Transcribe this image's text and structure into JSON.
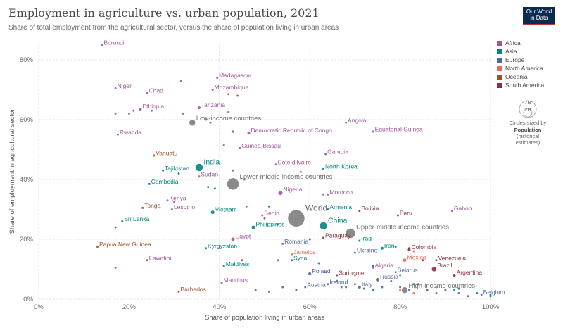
{
  "header": {
    "title": "Employment in agriculture vs. urban population, 2021",
    "subtitle": "Share of total employment from the agricultural sector, versus the share of population living in urban areas",
    "logo_line1": "Our World",
    "logo_line2": "in Data"
  },
  "colors": {
    "Africa": "#a2559c",
    "Asia": "#00847e",
    "Europe": "#4c6a9c",
    "North America": "#e56e5a",
    "Oceania": "#9a5129",
    "South America": "#883039",
    "Income": "#6d6d6d"
  },
  "size_legend": {
    "big": "7B",
    "small": "2B",
    "caption": "Circles sized by",
    "var": "Population",
    "var_note": "(historical",
    "var_note2": "estimates)"
  },
  "chart_data": {
    "type": "scatter",
    "xlabel": "Share of population living in urban areas",
    "ylabel": "Share of employment in agricultural sector",
    "xlim": [
      0,
      100
    ],
    "ylim": [
      0,
      80
    ],
    "xticks": [
      "0%",
      "20%",
      "40%",
      "60%",
      "80%",
      "100%"
    ],
    "yticks": [
      "0%",
      "20%",
      "40%",
      "60%",
      "80%"
    ],
    "legend": [
      "Africa",
      "Asia",
      "Europe",
      "North America",
      "Oceania",
      "South America"
    ],
    "points": [
      {
        "name": "Burundi",
        "region": "Africa",
        "x": 14,
        "y": 85,
        "r": 1.5
      },
      {
        "name": "Niger",
        "region": "Africa",
        "x": 17,
        "y": 70.5,
        "r": 1.5
      },
      {
        "name": "Chad",
        "region": "Africa",
        "x": 24,
        "y": 69,
        "r": 1.5
      },
      {
        "name": "Ethiopia",
        "region": "Africa",
        "x": 22.5,
        "y": 63.5,
        "r": 2
      },
      {
        "name": "Madagascar",
        "region": "Africa",
        "x": 39.5,
        "y": 74,
        "r": 1.5
      },
      {
        "name": "Mozambique",
        "region": "Africa",
        "x": 38.5,
        "y": 70,
        "r": 1.5
      },
      {
        "name": "Tanzania",
        "region": "Africa",
        "x": 35.5,
        "y": 64,
        "r": 2
      },
      {
        "name": "Rwanda",
        "region": "Africa",
        "x": 17.5,
        "y": 55,
        "r": 1.5
      },
      {
        "name": "Democratic Republic of Congo",
        "region": "Africa",
        "x": 46.5,
        "y": 55.5,
        "r": 2
      },
      {
        "name": "Angola",
        "region": "Africa",
        "x": 68,
        "y": 59,
        "r": 1.5
      },
      {
        "name": "Equatorial Guinea",
        "region": "Africa",
        "x": 74,
        "y": 56,
        "r": 1.5
      },
      {
        "name": "Guinea-Bissau",
        "region": "Africa",
        "x": 44.5,
        "y": 50.5,
        "r": 1.5
      },
      {
        "name": "Gambia",
        "region": "Africa",
        "x": 63.5,
        "y": 48.5,
        "r": 1.5
      },
      {
        "name": "Cote d'Ivoire",
        "region": "Africa",
        "x": 52.5,
        "y": 45,
        "r": 1.5
      },
      {
        "name": "Sudan",
        "region": "Africa",
        "x": 35.5,
        "y": 41,
        "r": 1.5
      },
      {
        "name": "Kenya",
        "region": "Africa",
        "x": 28.5,
        "y": 33,
        "r": 1.5
      },
      {
        "name": "Lesotho",
        "region": "Africa",
        "x": 29.5,
        "y": 30,
        "r": 1.5
      },
      {
        "name": "Nigeria",
        "region": "Africa",
        "x": 53.5,
        "y": 35.5,
        "r": 3
      },
      {
        "name": "Morocco",
        "region": "Africa",
        "x": 64,
        "y": 35,
        "r": 1.5
      },
      {
        "name": "Benin",
        "region": "Africa",
        "x": 49.5,
        "y": 28,
        "r": 1.5
      },
      {
        "name": "Egypt",
        "region": "Africa",
        "x": 43,
        "y": 20,
        "r": 2.5
      },
      {
        "name": "Eswatini",
        "region": "Africa",
        "x": 24,
        "y": 13,
        "r": 1.5
      },
      {
        "name": "Mauritius",
        "region": "Africa",
        "x": 40.5,
        "y": 5.5,
        "r": 1.5
      },
      {
        "name": "Algeria",
        "region": "Africa",
        "x": 74,
        "y": 10.5,
        "r": 1.5
      },
      {
        "name": "Gabon",
        "region": "Africa",
        "x": 91.5,
        "y": 29.5,
        "r": 1.5
      },
      {
        "name": "India",
        "region": "Asia",
        "x": 35.5,
        "y": 44,
        "r": 5.5
      },
      {
        "name": "Tajikistan",
        "region": "Asia",
        "x": 27.5,
        "y": 43,
        "r": 1.5
      },
      {
        "name": "Cambodia",
        "region": "Asia",
        "x": 24.5,
        "y": 38.5,
        "r": 1.5
      },
      {
        "name": "North Korea",
        "region": "Asia",
        "x": 63,
        "y": 43.5,
        "r": 1.5
      },
      {
        "name": "Vietnam",
        "region": "Asia",
        "x": 38.5,
        "y": 29,
        "r": 2.5
      },
      {
        "name": "Sri Lanka",
        "region": "Asia",
        "x": 18.5,
        "y": 26,
        "r": 1.5
      },
      {
        "name": "Armenia",
        "region": "Asia",
        "x": 64,
        "y": 30,
        "r": 1.5
      },
      {
        "name": "Philippines",
        "region": "Asia",
        "x": 47.5,
        "y": 24,
        "r": 2.5
      },
      {
        "name": "China",
        "region": "Asia",
        "x": 63,
        "y": 24.5,
        "r": 5.5
      },
      {
        "name": "Kyrgyzstan",
        "region": "Asia",
        "x": 37,
        "y": 17,
        "r": 1.5
      },
      {
        "name": "Iraq",
        "region": "Asia",
        "x": 71,
        "y": 19.5,
        "r": 1.5
      },
      {
        "name": "Iran",
        "region": "Asia",
        "x": 76,
        "y": 17,
        "r": 2
      },
      {
        "name": "Maldives",
        "region": "Asia",
        "x": 41,
        "y": 11,
        "r": 1.5
      },
      {
        "name": "Syria",
        "region": "Asia",
        "x": 56,
        "y": 13,
        "r": 1.5
      },
      {
        "name": "Romania",
        "region": "Europe",
        "x": 54,
        "y": 18.5,
        "r": 1.5
      },
      {
        "name": "Ukraine",
        "region": "Europe",
        "x": 70,
        "y": 15.5,
        "r": 1.5
      },
      {
        "name": "Poland",
        "region": "Europe",
        "x": 60,
        "y": 8.5,
        "r": 2
      },
      {
        "name": "Belarus",
        "region": "Europe",
        "x": 79,
        "y": 9,
        "r": 1.5
      },
      {
        "name": "Russia",
        "region": "Europe",
        "x": 75,
        "y": 6.5,
        "r": 2.5
      },
      {
        "name": "Austria",
        "region": "Europe",
        "x": 59,
        "y": 4,
        "r": 1.5
      },
      {
        "name": "Ireland",
        "region": "Europe",
        "x": 64,
        "y": 5,
        "r": 1.5
      },
      {
        "name": "Italy",
        "region": "Europe",
        "x": 71,
        "y": 4,
        "r": 2
      },
      {
        "name": "Belgium",
        "region": "Europe",
        "x": 98,
        "y": 1.5,
        "r": 1.5
      },
      {
        "name": "Jamaica",
        "region": "North America",
        "x": 56,
        "y": 15,
        "r": 1.5
      },
      {
        "name": "Mexico",
        "region": "North America",
        "x": 81,
        "y": 13,
        "r": 2.5
      },
      {
        "name": "Papua New Guinea",
        "region": "Oceania",
        "x": 13,
        "y": 17.5,
        "r": 1.5
      },
      {
        "name": "Vanuatu",
        "region": "Oceania",
        "x": 25.5,
        "y": 48,
        "r": 1.5
      },
      {
        "name": "Tonga",
        "region": "Oceania",
        "x": 23,
        "y": 30.5,
        "r": 1.5
      },
      {
        "name": "Barbados",
        "region": "Oceania",
        "x": 31,
        "y": 2.5,
        "r": 1.5
      },
      {
        "name": "Bolivia",
        "region": "South America",
        "x": 71,
        "y": 29.5,
        "r": 1.5
      },
      {
        "name": "Peru",
        "region": "South America",
        "x": 79.5,
        "y": 28,
        "r": 1.5
      },
      {
        "name": "Paraguay",
        "region": "South America",
        "x": 63,
        "y": 20.5,
        "r": 1.5
      },
      {
        "name": "Colombia",
        "region": "South America",
        "x": 82,
        "y": 16.5,
        "r": 2
      },
      {
        "name": "Venezuela",
        "region": "South America",
        "x": 88,
        "y": 13,
        "r": 1.5
      },
      {
        "name": "Brazil",
        "region": "South America",
        "x": 87.5,
        "y": 10,
        "r": 3.5
      },
      {
        "name": "Argentina",
        "region": "South America",
        "x": 92,
        "y": 8,
        "r": 2
      },
      {
        "name": "Suriname",
        "region": "South America",
        "x": 66,
        "y": 8,
        "r": 1.5
      },
      {
        "name": "Low-income countries",
        "region": "Income",
        "x": 34,
        "y": 59,
        "r": 4.5
      },
      {
        "name": "Lower-middle-income countries",
        "region": "Income",
        "x": 43,
        "y": 38.5,
        "r": 8.5
      },
      {
        "name": "World",
        "region": "Income",
        "x": 57,
        "y": 27,
        "r": 12
      },
      {
        "name": "Upper-middle-income countries",
        "region": "Income",
        "x": 69,
        "y": 22,
        "r": 7
      },
      {
        "name": "High-income countries",
        "region": "Income",
        "x": 81,
        "y": 3,
        "r": 4.5
      }
    ],
    "unlabeled": [
      {
        "region": "Africa",
        "x": 17,
        "y": 62
      },
      {
        "region": "Africa",
        "x": 20,
        "y": 62
      },
      {
        "region": "Africa",
        "x": 21,
        "y": 63
      },
      {
        "region": "Africa",
        "x": 25,
        "y": 63
      },
      {
        "region": "Africa",
        "x": 32,
        "y": 62
      },
      {
        "region": "Africa",
        "x": 31.5,
        "y": 73
      },
      {
        "region": "Africa",
        "x": 42,
        "y": 68.5
      },
      {
        "region": "Africa",
        "x": 44,
        "y": 68
      },
      {
        "region": "Africa",
        "x": 42,
        "y": 62.5
      },
      {
        "region": "Africa",
        "x": 37,
        "y": 60
      },
      {
        "region": "Africa",
        "x": 38,
        "y": 59
      },
      {
        "region": "Africa",
        "x": 41,
        "y": 51.5
      },
      {
        "region": "Africa",
        "x": 43,
        "y": 43
      },
      {
        "region": "Africa",
        "x": 45.5,
        "y": 40
      },
      {
        "region": "Africa",
        "x": 58,
        "y": 42.5
      },
      {
        "region": "Africa",
        "x": 60,
        "y": 41
      },
      {
        "region": "Africa",
        "x": 63,
        "y": 35
      },
      {
        "region": "Africa",
        "x": 46,
        "y": 31
      },
      {
        "region": "Africa",
        "x": 50,
        "y": 27
      },
      {
        "region": "Africa",
        "x": 17,
        "y": 10.5
      },
      {
        "region": "Africa",
        "x": 30,
        "y": 32.5
      },
      {
        "region": "Asia",
        "x": 31,
        "y": 42
      },
      {
        "region": "Asia",
        "x": 37.5,
        "y": 37.5
      },
      {
        "region": "Asia",
        "x": 39,
        "y": 37
      },
      {
        "region": "Asia",
        "x": 43,
        "y": 56
      },
      {
        "region": "Asia",
        "x": 17,
        "y": 24
      },
      {
        "region": "Asia",
        "x": 51,
        "y": 31
      },
      {
        "region": "Asia",
        "x": 53,
        "y": 25
      },
      {
        "region": "Asia",
        "x": 60,
        "y": 20
      },
      {
        "region": "Asia",
        "x": 74,
        "y": 11
      },
      {
        "region": "Asia",
        "x": 79,
        "y": 17.5
      },
      {
        "region": "Asia",
        "x": 80,
        "y": 8
      },
      {
        "region": "Asia",
        "x": 92,
        "y": 3
      },
      {
        "region": "Asia",
        "x": 93,
        "y": 3.5
      },
      {
        "region": "Asia",
        "x": 97,
        "y": 2
      },
      {
        "region": "Asia",
        "x": 100,
        "y": 1
      },
      {
        "region": "Asia",
        "x": 100,
        "y": 1.5
      },
      {
        "region": "Asia",
        "x": 83,
        "y": 5
      },
      {
        "region": "Europe",
        "x": 62,
        "y": 12
      },
      {
        "region": "Europe",
        "x": 63.5,
        "y": 9
      },
      {
        "region": "Europe",
        "x": 66,
        "y": 6
      },
      {
        "region": "Europe",
        "x": 68,
        "y": 4
      },
      {
        "region": "Europe",
        "x": 70,
        "y": 5
      },
      {
        "region": "Europe",
        "x": 72,
        "y": 3.5
      },
      {
        "region": "Europe",
        "x": 74,
        "y": 3
      },
      {
        "region": "Europe",
        "x": 76,
        "y": 4
      },
      {
        "region": "Europe",
        "x": 78,
        "y": 6
      },
      {
        "region": "Europe",
        "x": 80,
        "y": 4
      },
      {
        "region": "Europe",
        "x": 82,
        "y": 3
      },
      {
        "region": "Europe",
        "x": 84,
        "y": 5
      },
      {
        "region": "Europe",
        "x": 86,
        "y": 3
      },
      {
        "region": "Europe",
        "x": 88,
        "y": 2
      },
      {
        "region": "Europe",
        "x": 90,
        "y": 3
      },
      {
        "region": "Europe",
        "x": 93,
        "y": 2
      },
      {
        "region": "Europe",
        "x": 95,
        "y": 1
      },
      {
        "region": "Europe",
        "x": 57,
        "y": 3
      },
      {
        "region": "North America",
        "x": 70,
        "y": 8
      },
      {
        "region": "North America",
        "x": 80,
        "y": 3
      },
      {
        "region": "North America",
        "x": 83,
        "y": 2
      },
      {
        "region": "North America",
        "x": 88,
        "y": 4
      },
      {
        "region": "North America",
        "x": 83,
        "y": 16
      },
      {
        "region": "South America",
        "x": 82,
        "y": 17
      },
      {
        "region": "South America",
        "x": 85,
        "y": 13
      },
      {
        "region": "Income",
        "x": 45,
        "y": 13
      },
      {
        "region": "Income",
        "x": 53,
        "y": 13
      },
      {
        "region": "Income",
        "x": 54,
        "y": 4
      },
      {
        "region": "Income",
        "x": 48,
        "y": 3
      },
      {
        "region": "Income",
        "x": 51,
        "y": 2.5
      },
      {
        "region": "Income",
        "x": 67,
        "y": 4
      }
    ]
  }
}
